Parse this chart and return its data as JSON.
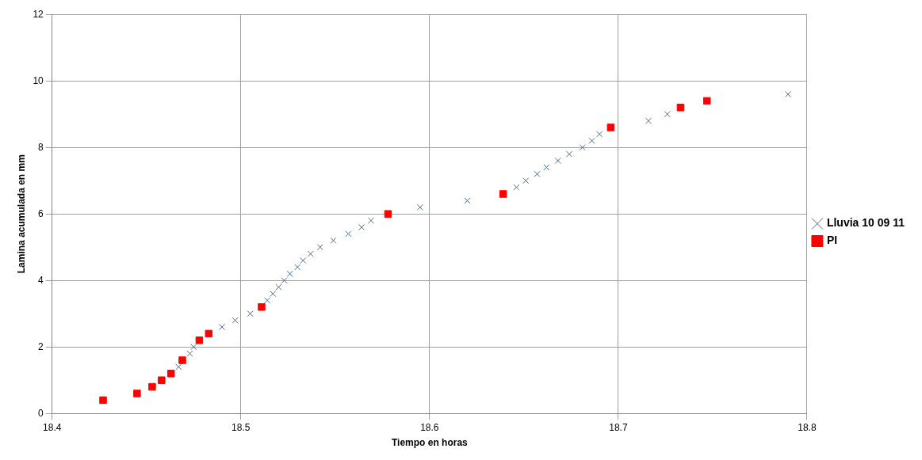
{
  "chart_data": {
    "type": "scatter",
    "xlabel": "Tiempo en horas",
    "ylabel": "Lamina acumulada en mm",
    "xlim": [
      18.4,
      18.8
    ],
    "xticks": [
      18.4,
      18.5,
      18.6,
      18.7,
      18.8
    ],
    "ylim": [
      0,
      12
    ],
    "yticks": [
      0,
      2,
      4,
      6,
      8,
      10,
      12
    ],
    "grid": true,
    "legend": "right",
    "series": [
      {
        "name": "Lluvia 10 09 11",
        "color": "#4a6a9a",
        "marker": "cross",
        "x": [
          18.467,
          18.473,
          18.475,
          18.49,
          18.497,
          18.505,
          18.514,
          18.517,
          18.52,
          18.523,
          18.526,
          18.53,
          18.533,
          18.537,
          18.542,
          18.549,
          18.557,
          18.564,
          18.569,
          18.595,
          18.62,
          18.646,
          18.651,
          18.657,
          18.662,
          18.668,
          18.674,
          18.681,
          18.686,
          18.69,
          18.716,
          18.726,
          18.79
        ],
        "values": [
          1.4,
          1.8,
          2.0,
          2.6,
          2.8,
          3.0,
          3.4,
          3.6,
          3.8,
          4.0,
          4.2,
          4.4,
          4.6,
          4.8,
          5.0,
          5.2,
          5.4,
          5.6,
          5.8,
          6.2,
          6.4,
          6.8,
          7.0,
          7.2,
          7.4,
          7.6,
          7.8,
          8.0,
          8.2,
          8.4,
          8.8,
          9.0,
          9.6
        ]
      },
      {
        "name": "PI",
        "color": "#ff0000",
        "marker": "square",
        "x": [
          18.427,
          18.445,
          18.453,
          18.458,
          18.463,
          18.469,
          18.478,
          18.483,
          18.511,
          18.578,
          18.639,
          18.696,
          18.733,
          18.747
        ],
        "values": [
          0.4,
          0.6,
          0.8,
          1.0,
          1.2,
          1.6,
          2.2,
          2.4,
          3.2,
          6.0,
          6.6,
          8.6,
          9.2,
          9.4
        ]
      }
    ]
  }
}
